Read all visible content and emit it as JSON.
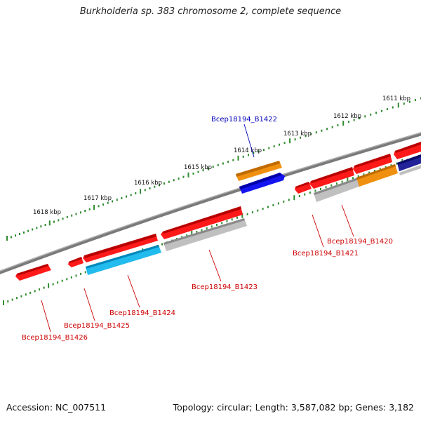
{
  "title": "Burkholderia sp. 383 chromosome 2, complete sequence",
  "footer": {
    "accession": "Accession: NC_007511",
    "summary": "Topology: circular; Length: 3,587,082 bp; Genes: 3,182"
  },
  "colors": {
    "backbone": "#8a8a8a",
    "tick": "#2e8b2e",
    "gene_red": "#ff1a1a",
    "gene_orange": "#f0900a",
    "gene_blue": "#1010ee",
    "gene_cyan": "#22bbee",
    "gene_gray": "#bdbdbd",
    "gene_navy": "#222299",
    "label_red": "#cc0000",
    "label_blue": "#0000bb"
  },
  "ticks": {
    "outer": [
      "1611 kbp",
      "1612 kbp",
      "1613 kbp",
      "1614 kbp",
      "1615 kbp",
      "1616 kbp",
      "1617 kbp",
      "1618 kbp"
    ]
  },
  "genes": [
    {
      "id": "gene-1426",
      "label": "Bcep18194_B1426",
      "color": "gene_red"
    },
    {
      "id": "gene-1425",
      "label": "Bcep18194_B1425",
      "color": "gene_red"
    },
    {
      "id": "gene-1424",
      "label": "Bcep18194_B1424",
      "color": "gene_red"
    },
    {
      "id": "gene-1423",
      "label": "Bcep18194_B1423",
      "color": "gene_red"
    },
    {
      "id": "gene-1422",
      "label": "Bcep18194_B1422",
      "color": "gene_orange"
    },
    {
      "id": "gene-1421",
      "label": "Bcep18194_B1421",
      "color": "gene_red"
    },
    {
      "id": "gene-1420",
      "label": "Bcep18194_B1420",
      "color": "gene_red"
    }
  ]
}
